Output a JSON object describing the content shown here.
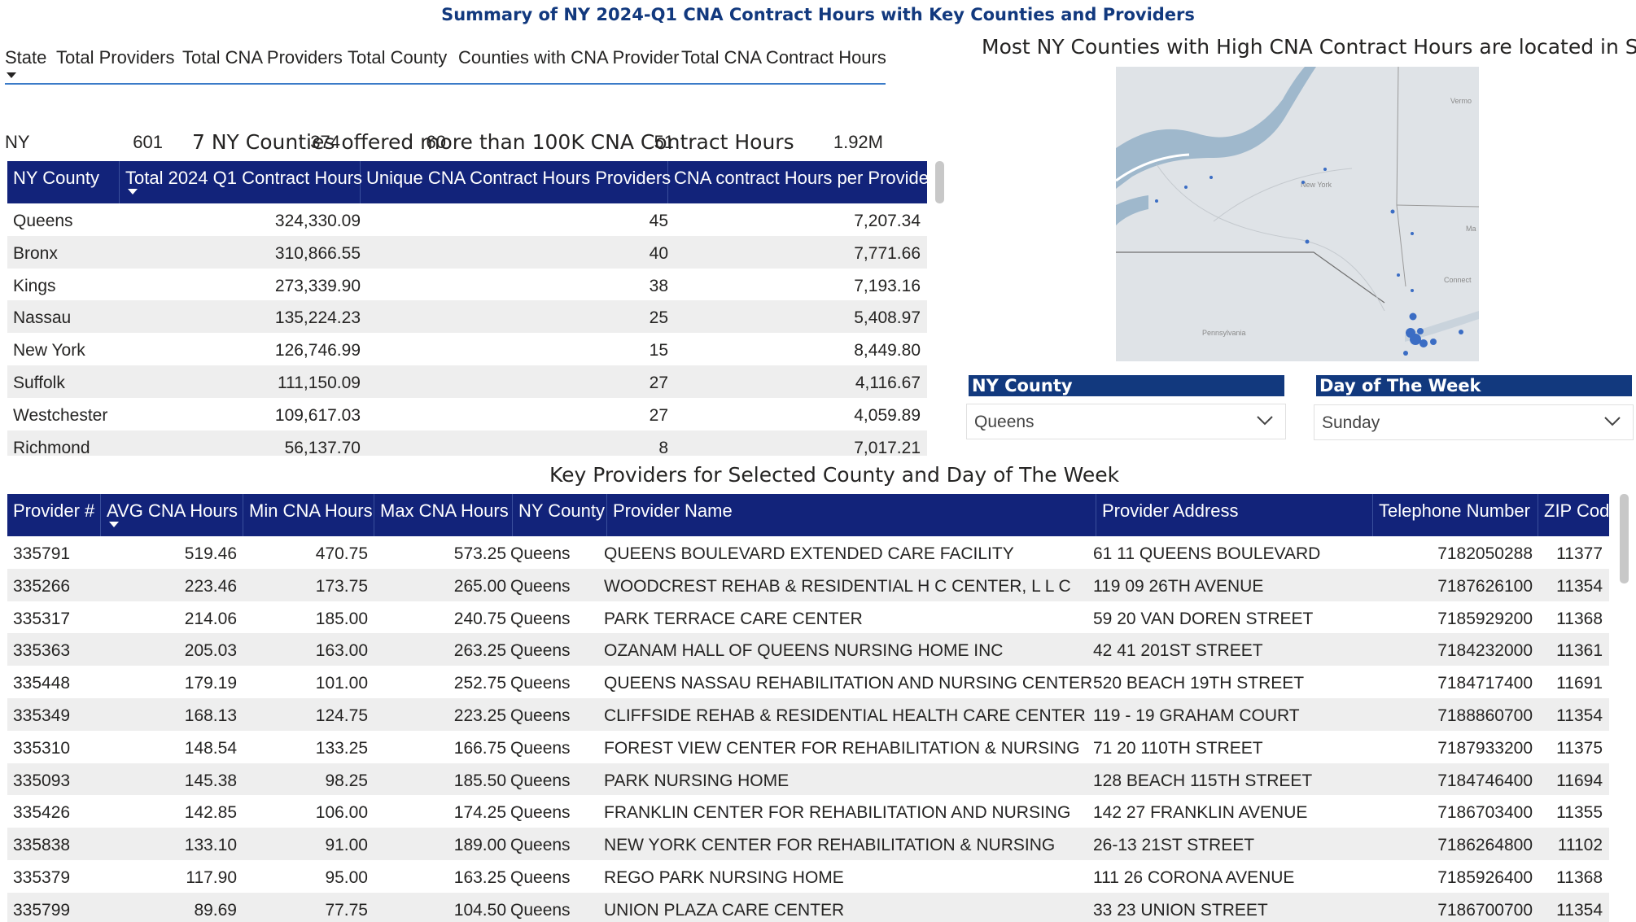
{
  "page_title": "Summary of NY 2024-Q1 CNA Contract Hours with Key Counties and Providers",
  "summary": {
    "headers": [
      "State",
      "Total Providers",
      "Total CNA Providers",
      "Total County",
      "Counties with CNA Provider",
      "Total CNA Contract Hours"
    ],
    "row": [
      "NY",
      "601",
      "374",
      "60",
      "51",
      "1.92M"
    ]
  },
  "counties_title": "7 NY Counties offered more than 100K CNA Contract Hours",
  "counties_table": {
    "headers": [
      "NY County",
      "Total 2024 Q1 Contract Hours",
      "Unique CNA Contract Hours Providers",
      "CNA contract Hours per Provider"
    ],
    "rows": [
      [
        "Queens",
        "324,330.09",
        "45",
        "7,207.34"
      ],
      [
        "Bronx",
        "310,866.55",
        "40",
        "7,771.66"
      ],
      [
        "Kings",
        "273,339.90",
        "38",
        "7,193.16"
      ],
      [
        "Nassau",
        "135,224.23",
        "25",
        "5,408.97"
      ],
      [
        "New York",
        "126,746.99",
        "15",
        "8,449.80"
      ],
      [
        "Suffolk",
        "111,150.09",
        "27",
        "4,116.67"
      ],
      [
        "Westchester",
        "109,617.03",
        "27",
        "4,059.89"
      ],
      [
        "Richmond",
        "56,137.70",
        "8",
        "7,017.21"
      ]
    ]
  },
  "map_title": "Most NY Counties with High CNA Contract Hours are located in SE",
  "map_labels": {
    "vermont": "Vermo",
    "new_york": "New York",
    "ma": "Ma",
    "connecticut": "Connect",
    "pennsylvania": "Pennsylvania"
  },
  "colors": {
    "header_bg": "#12237a",
    "slicer_bg": "#12397e",
    "title_color": "#12397e",
    "map_dot": "#3b6dc4",
    "water": "#9fb8cc",
    "land": "#dfe3e7"
  },
  "slicers": {
    "county": {
      "label": "NY County",
      "value": "Queens"
    },
    "day": {
      "label": "Day of The Week",
      "value": "Sunday"
    }
  },
  "providers_title": "Key Providers for Selected County and Day of The Week",
  "providers_table": {
    "headers": [
      "Provider #",
      "AVG CNA Hours",
      "Min CNA Hours",
      "Max CNA Hours",
      "NY County",
      "Provider Name",
      "Provider Address",
      "Telephone Number",
      "ZIP Code"
    ],
    "rows": [
      [
        "335791",
        "519.46",
        "470.75",
        "573.25",
        "Queens",
        "QUEENS BOULEVARD EXTENDED CARE FACILITY",
        "61 11 QUEENS BOULEVARD",
        "7182050288",
        "11377"
      ],
      [
        "335266",
        "223.46",
        "173.75",
        "265.00",
        "Queens",
        "WOODCREST REHAB & RESIDENTIAL H C CENTER, L L C",
        "119 09 26TH AVENUE",
        "7187626100",
        "11354"
      ],
      [
        "335317",
        "214.06",
        "185.00",
        "240.75",
        "Queens",
        "PARK TERRACE CARE CENTER",
        "59 20 VAN DOREN STREET",
        "7185929200",
        "11368"
      ],
      [
        "335363",
        "205.03",
        "163.00",
        "263.25",
        "Queens",
        "OZANAM HALL OF QUEENS NURSING HOME INC",
        "42 41 201ST STREET",
        "7184232000",
        "11361"
      ],
      [
        "335448",
        "179.19",
        "101.00",
        "252.75",
        "Queens",
        "QUEENS NASSAU REHABILITATION AND NURSING CENTER",
        "520 BEACH 19TH STREET",
        "7184717400",
        "11691"
      ],
      [
        "335349",
        "168.13",
        "124.75",
        "223.25",
        "Queens",
        "CLIFFSIDE REHAB & RESIDENTIAL HEALTH CARE CENTER",
        "119 - 19 GRAHAM COURT",
        "7188860700",
        "11354"
      ],
      [
        "335310",
        "148.54",
        "133.25",
        "166.75",
        "Queens",
        "FOREST VIEW CENTER FOR REHABILITATION & NURSING",
        "71 20 110TH STREET",
        "7187933200",
        "11375"
      ],
      [
        "335093",
        "145.38",
        "98.25",
        "185.50",
        "Queens",
        "PARK NURSING HOME",
        "128 BEACH 115TH STREET",
        "7184746400",
        "11694"
      ],
      [
        "335426",
        "142.85",
        "106.00",
        "174.25",
        "Queens",
        "FRANKLIN CENTER FOR REHABILITATION AND NURSING",
        "142 27 FRANKLIN AVENUE",
        "7186703400",
        "11355"
      ],
      [
        "335838",
        "133.10",
        "91.00",
        "189.00",
        "Queens",
        "NEW YORK CENTER FOR REHABILITATION & NURSING",
        "26-13 21ST STREET",
        "7186264800",
        "11102"
      ],
      [
        "335379",
        "117.90",
        "95.00",
        "163.25",
        "Queens",
        "REGO PARK NURSING HOME",
        "111 26 CORONA AVENUE",
        "7185926400",
        "11368"
      ],
      [
        "335799",
        "89.69",
        "77.75",
        "104.50",
        "Queens",
        "UNION PLAZA CARE CENTER",
        "33 23 UNION STREET",
        "7186700700",
        "11354"
      ]
    ]
  }
}
